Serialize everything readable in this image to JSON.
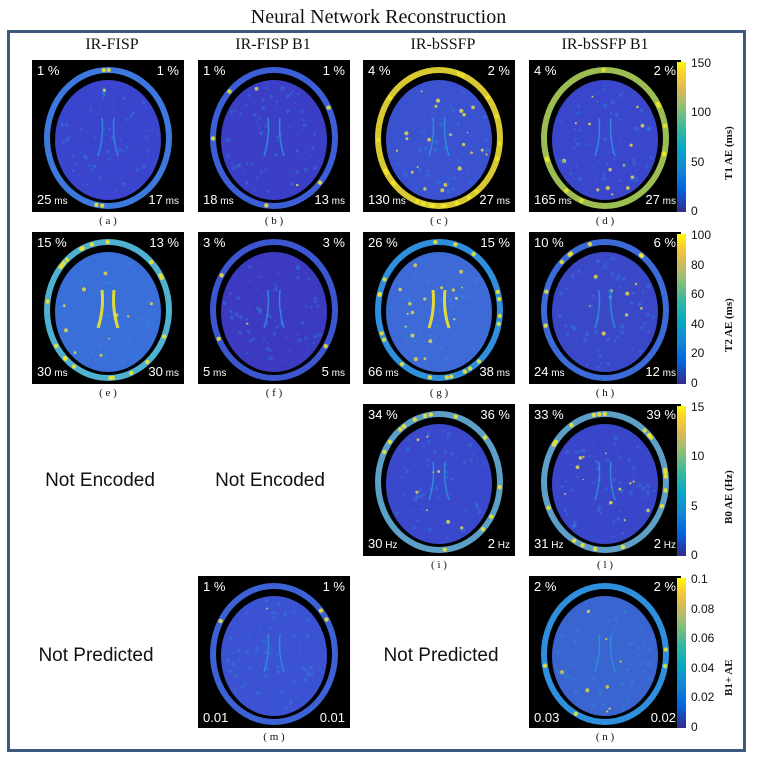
{
  "figure": {
    "title": "Neural Network Reconstruction",
    "columns": [
      "IR-FISP",
      "IR-FISP B1",
      "IR-bSSFP",
      "IR-bSSFP B1"
    ],
    "placeholders": {
      "not_encoded": "Not Encoded",
      "not_predicted": "Not Predicted"
    }
  },
  "panels": [
    {
      "id": "a",
      "caption": "( a )",
      "tl": "1 %",
      "tr": "1 %",
      "bl": "25",
      "bl_unit": "ms",
      "br": "17",
      "br_unit": "ms"
    },
    {
      "id": "b",
      "caption": "( b )",
      "tl": "1 %",
      "tr": "1 %",
      "bl": "18",
      "bl_unit": "ms",
      "br": "13",
      "br_unit": "ms"
    },
    {
      "id": "c",
      "caption": "( c )",
      "tl": "4 %",
      "tr": "2 %",
      "bl": "130",
      "bl_unit": "ms",
      "br": "27",
      "br_unit": "ms"
    },
    {
      "id": "d",
      "caption": "( d )",
      "tl": "4 %",
      "tr": "2 %",
      "bl": "165",
      "bl_unit": "ms",
      "br": "27",
      "br_unit": "ms"
    },
    {
      "id": "e",
      "caption": "( e )",
      "tl": "15 %",
      "tr": "13 %",
      "bl": "30",
      "bl_unit": "ms",
      "br": "30",
      "br_unit": "ms"
    },
    {
      "id": "f",
      "caption": "( f )",
      "tl": "3 %",
      "tr": "3 %",
      "bl": "5",
      "bl_unit": "ms",
      "br": "5",
      "br_unit": "ms"
    },
    {
      "id": "g",
      "caption": "( g )",
      "tl": "26 %",
      "tr": "15 %",
      "bl": "66",
      "bl_unit": "ms",
      "br": "38",
      "br_unit": "ms"
    },
    {
      "id": "h",
      "caption": "( h )",
      "tl": "10 %",
      "tr": "6 %",
      "bl": "24",
      "bl_unit": "ms",
      "br": "12",
      "br_unit": "ms"
    },
    {
      "id": "i",
      "caption": "( i )",
      "tl": "34 %",
      "tr": "36 %",
      "bl": "30",
      "bl_unit": "Hz",
      "br": "2",
      "br_unit": "Hz"
    },
    {
      "id": "l",
      "caption": "( l )",
      "tl": "33 %",
      "tr": "39 %",
      "bl": "31",
      "bl_unit": "Hz",
      "br": "2",
      "br_unit": "Hz"
    },
    {
      "id": "m",
      "caption": "( m )",
      "tl": "1 %",
      "tr": "1 %",
      "bl": "0.01",
      "bl_unit": "",
      "br": "0.01",
      "br_unit": ""
    },
    {
      "id": "n",
      "caption": "( n )",
      "tl": "2 %",
      "tr": "2 %",
      "bl": "0.03",
      "bl_unit": "",
      "br": "0.02",
      "br_unit": ""
    }
  ],
  "colorbars": [
    {
      "id": "t1",
      "label": "T1 AE (ms)",
      "ticks": [
        "150",
        "100",
        "50",
        "0"
      ]
    },
    {
      "id": "t2",
      "label": "T2 AE (ms)",
      "ticks": [
        "100",
        "80",
        "60",
        "40",
        "20",
        "0"
      ]
    },
    {
      "id": "b0",
      "label": "B0 AE (Hz)",
      "ticks": [
        "15",
        "10",
        "5",
        "0"
      ]
    },
    {
      "id": "b1",
      "label": "B1+ AE",
      "ticks": [
        "0.1",
        "0.08",
        "0.06",
        "0.04",
        "0.02",
        "0"
      ]
    }
  ],
  "colors": {
    "frame": "#3c5a7d",
    "brain_low": "#3e3fd0",
    "brain_mid": "#2f8fdc",
    "brain_high": "#f2e629"
  }
}
